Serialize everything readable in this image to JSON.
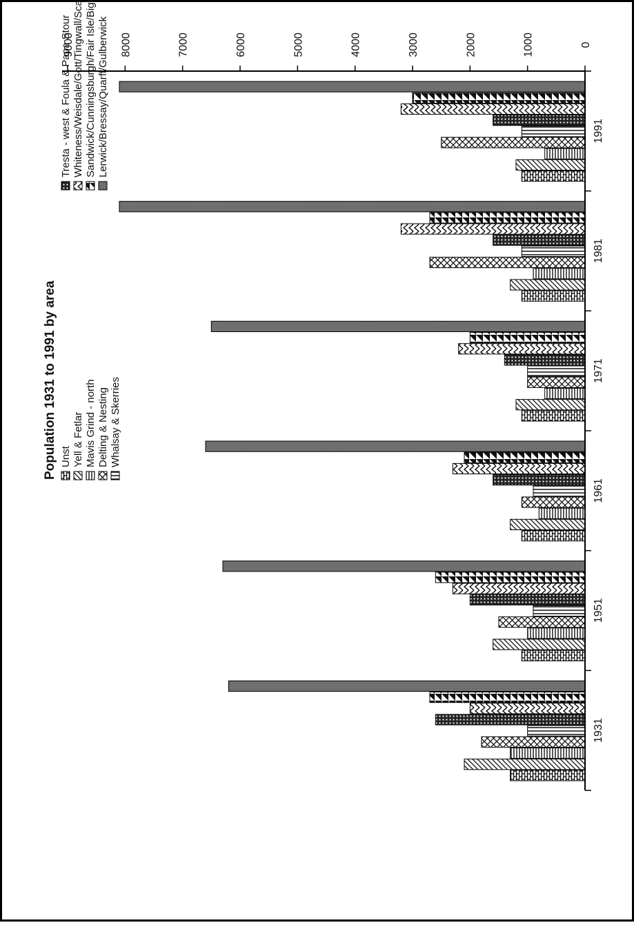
{
  "chart_data": {
    "type": "bar",
    "orientation": "horizontal-rotated",
    "title": "Population 1931 to 1991 by area",
    "xlabel": "",
    "ylabel": "",
    "ylim": [
      0,
      9000
    ],
    "yticks": [
      "0",
      "1000",
      "2000",
      "3000",
      "4000",
      "5000",
      "6000",
      "7000",
      "8000",
      "9000"
    ],
    "categories": [
      "1931",
      "1951",
      "1961",
      "1971",
      "1981",
      "1991"
    ],
    "legend_position": "top",
    "grid": false,
    "series": [
      {
        "name": "Unst",
        "color": "#5a5a5a",
        "pattern": "brick",
        "values": [
          1300,
          1100,
          1100,
          1100,
          1100,
          1100
        ]
      },
      {
        "name": "Yell & Fetlar",
        "color": "#555555",
        "pattern": "diag",
        "values": [
          2100,
          1600,
          1300,
          1200,
          1300,
          1200
        ]
      },
      {
        "name": "Mavis Grind - north",
        "color": "#444444",
        "pattern": "hlines",
        "values": [
          1300,
          1000,
          800,
          700,
          900,
          700
        ]
      },
      {
        "name": "Delting & Nesting",
        "color": "#444444",
        "pattern": "cross",
        "values": [
          1800,
          1500,
          1100,
          1000,
          2700,
          2500
        ]
      },
      {
        "name": "Whalsay & Skerries",
        "color": "#444444",
        "pattern": "vlines",
        "values": [
          1000,
          900,
          900,
          1000,
          1100,
          1100
        ]
      },
      {
        "name": "Tresta - west & Foula & Papa Stour",
        "color": "#333333",
        "pattern": "dots",
        "values": [
          2600,
          2000,
          1600,
          1400,
          1600,
          1600
        ]
      },
      {
        "name": "Whiteness/Weisdale/Gott/Tingwall/Scalloway/Burra/Trondra",
        "color": "#444444",
        "pattern": "zigzag",
        "values": [
          2000,
          2300,
          2300,
          2200,
          3200,
          3200
        ]
      },
      {
        "name": "Sandwick/Cunningsburgh/Fair Isle/Bigton Junction - south",
        "color": "#333333",
        "pattern": "tri",
        "values": [
          2700,
          2600,
          2100,
          2000,
          2700,
          3000
        ]
      },
      {
        "name": "Lerwick/Bressay/Quarff/Gulberwick",
        "color": "#6e6e6e",
        "pattern": "solid",
        "values": [
          6200,
          6300,
          6600,
          6500,
          8100,
          8100
        ]
      }
    ]
  }
}
